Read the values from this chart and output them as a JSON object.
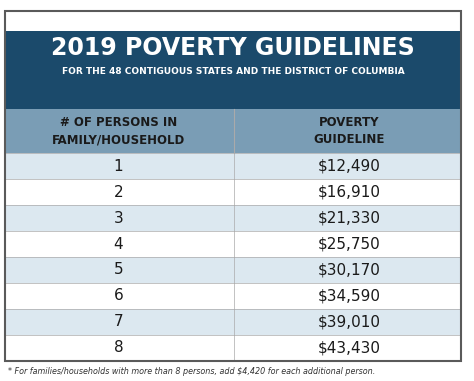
{
  "title_line1": "2019 POVERTY GUIDELINES",
  "title_line2": "FOR THE 48 CONTIGUOUS STATES AND THE DISTRICT OF COLUMBIA",
  "col1_header": "# OF PERSONS IN\nFAMILY/HOUSEHOLD",
  "col2_header": "POVERTY\nGUIDELINE",
  "persons": [
    1,
    2,
    3,
    4,
    5,
    6,
    7,
    8
  ],
  "guidelines": [
    "$12,490",
    "$16,910",
    "$21,330",
    "$25,750",
    "$30,170",
    "$34,590",
    "$39,010",
    "$43,430"
  ],
  "footnote": "* For families/households with more than 8 persons, add $4,420 for each additional person.",
  "header_bg": "#1b4a6b",
  "col_header_bg": "#7a9db5",
  "row_alt1": "#dce8f0",
  "row_alt2": "#ffffff",
  "border_color": "#aaaaaa",
  "title_color": "#ffffff",
  "subtitle_color": "#ffffff",
  "col_header_text_color": "#1a1a1a",
  "data_text_color": "#1a1a1a",
  "footnote_color": "#333333",
  "outer_border_color": "#5a5a5a"
}
